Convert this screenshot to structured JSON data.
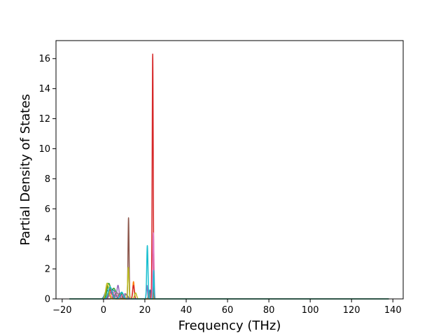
{
  "chart_data": {
    "type": "line",
    "title": "",
    "xlabel": "Frequency (THz)",
    "ylabel": "Partial Density of States",
    "xlim": [
      -23,
      145
    ],
    "ylim": [
      0,
      17.2
    ],
    "xticks": [
      -20,
      0,
      20,
      40,
      60,
      80,
      100,
      120,
      140
    ],
    "yticks": [
      0,
      2,
      4,
      6,
      8,
      10,
      12,
      14,
      16
    ],
    "xtick_labels": [
      "−20",
      "0",
      "20",
      "40",
      "60",
      "80",
      "100",
      "120",
      "140"
    ],
    "ytick_labels": [
      "0",
      "2",
      "4",
      "6",
      "8",
      "10",
      "12",
      "14",
      "16"
    ],
    "grid": false,
    "legend": "none",
    "series": [
      {
        "color": "#1f77b4",
        "peaks": [
          [
            1.5,
            0.55,
            0.9
          ],
          [
            4.5,
            0.6,
            1.2
          ],
          [
            9.0,
            0.3,
            0.8
          ],
          [
            22.5,
            0.6,
            0.3
          ]
        ]
      },
      {
        "color": "#ff7f0e",
        "peaks": [
          [
            2.0,
            0.9,
            0.8
          ],
          [
            6.0,
            0.3,
            1.0
          ],
          [
            14.5,
            1.15,
            0.35
          ],
          [
            23.8,
            0.5,
            0.25
          ]
        ]
      },
      {
        "color": "#2ca02c",
        "peaks": [
          [
            2.5,
            1.0,
            0.8
          ],
          [
            5.0,
            0.7,
            1.0
          ],
          [
            8.5,
            0.4,
            0.8
          ]
        ]
      },
      {
        "color": "#d62728",
        "peaks": [
          [
            3.0,
            0.6,
            0.9
          ],
          [
            14.5,
            0.9,
            0.4
          ],
          [
            23.8,
            16.3,
            0.25
          ]
        ]
      },
      {
        "color": "#9467bd",
        "peaks": [
          [
            4.0,
            0.5,
            1.0
          ],
          [
            7.0,
            0.9,
            0.5
          ],
          [
            10.5,
            0.35,
            0.8
          ],
          [
            21.0,
            0.9,
            0.3
          ]
        ]
      },
      {
        "color": "#8c564b",
        "peaks": [
          [
            3.5,
            0.7,
            0.9
          ],
          [
            8.0,
            0.35,
            0.8
          ],
          [
            12.1,
            5.4,
            0.25
          ]
        ]
      },
      {
        "color": "#e377c2",
        "peaks": [
          [
            5.5,
            0.45,
            1.0
          ],
          [
            9.5,
            0.3,
            0.8
          ],
          [
            24.1,
            4.4,
            0.3
          ]
        ]
      },
      {
        "color": "#7f7f7f",
        "peaks": [
          [
            6.5,
            0.4,
            1.0
          ],
          [
            11.0,
            0.3,
            0.8
          ],
          [
            22.0,
            0.5,
            0.3
          ]
        ]
      },
      {
        "color": "#bcbd22",
        "peaks": [
          [
            1.8,
            1.05,
            0.7
          ],
          [
            12.0,
            2.1,
            0.3
          ],
          [
            15.5,
            0.4,
            0.5
          ]
        ]
      },
      {
        "color": "#17becf",
        "peaks": [
          [
            3.2,
            0.8,
            0.9
          ],
          [
            8.8,
            0.45,
            0.8
          ],
          [
            21.2,
            3.55,
            0.3
          ],
          [
            24.3,
            1.9,
            0.2
          ]
        ]
      }
    ],
    "x_range": [
      -16.5,
      138
    ],
    "notes": "Each series is a sum of Gaussian peaks [center THz, height, width THz]; zero elsewhere between x_range bounds."
  }
}
